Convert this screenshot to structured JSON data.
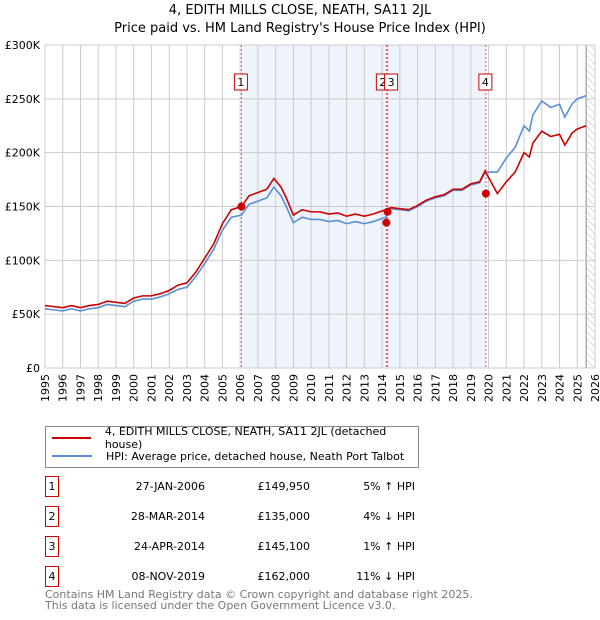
{
  "chart_data": {
    "type": "line",
    "title": "4, EDITH MILLS CLOSE, NEATH, SA11 2JL",
    "subtitle": "Price paid vs. HM Land Registry's House Price Index (HPI)",
    "xlim": [
      1995,
      2026
    ],
    "ylim": [
      0,
      300000
    ],
    "y_ticks": [
      {
        "v": 0,
        "label": "£0"
      },
      {
        "v": 50000,
        "label": "£50K"
      },
      {
        "v": 100000,
        "label": "£100K"
      },
      {
        "v": 150000,
        "label": "£150K"
      },
      {
        "v": 200000,
        "label": "£200K"
      },
      {
        "v": 250000,
        "label": "£250K"
      },
      {
        "v": 300000,
        "label": "£300K"
      }
    ],
    "x_ticks": [
      "1995",
      "1996",
      "1997",
      "1998",
      "1999",
      "2000",
      "2001",
      "2002",
      "2003",
      "2004",
      "2005",
      "2006",
      "2007",
      "2008",
      "2009",
      "2010",
      "2011",
      "2012",
      "2013",
      "2014",
      "2015",
      "2016",
      "2017",
      "2018",
      "2019",
      "2020",
      "2021",
      "2022",
      "2023",
      "2024",
      "2025",
      "2026"
    ],
    "grid": true,
    "x": [
      1995,
      1995.5,
      1996,
      1996.5,
      1997,
      1997.5,
      1998,
      1998.5,
      1999,
      1999.5,
      2000,
      2000.5,
      2001,
      2001.5,
      2002,
      2002.5,
      2003,
      2003.5,
      2004,
      2004.5,
      2005,
      2005.5,
      2006.07,
      2006.5,
      2007,
      2007.5,
      2007.9,
      2008.3,
      2008.6,
      2009,
      2009.5,
      2010,
      2010.5,
      2011,
      2011.5,
      2012,
      2012.5,
      2013,
      2013.5,
      2014.2,
      2014.5,
      2015,
      2015.5,
      2016,
      2016.5,
      2017,
      2017.5,
      2018,
      2018.5,
      2019,
      2019.5,
      2019.8,
      2020.5,
      2021,
      2021.5,
      2022,
      2022.3,
      2022.5,
      2023,
      2023.5,
      2024,
      2024.3,
      2024.7,
      2025,
      2025.5
    ],
    "series": [
      {
        "name": "4, EDITH MILLS CLOSE, NEATH, SA11 2JL (detached house)",
        "color": "#cc0000",
        "values": [
          58,
          57,
          56,
          58,
          56,
          58,
          59,
          62,
          61,
          60,
          65,
          67,
          67,
          69,
          72,
          77,
          79,
          89,
          102,
          115,
          134,
          147,
          149.95,
          160,
          163,
          166,
          176,
          168,
          158,
          142,
          147,
          145,
          145,
          143,
          144,
          141,
          143,
          141,
          143,
          147,
          149,
          148,
          147,
          151,
          156,
          159,
          161,
          166,
          166,
          171,
          173,
          183,
          162,
          173,
          182,
          200,
          196,
          209,
          220,
          215,
          217,
          207,
          218,
          222,
          225
        ]
      },
      {
        "name": "HPI: Average price, detached house, Neath Port Talbot",
        "color": "#5b8fd4",
        "values": [
          55,
          54,
          53,
          55,
          53,
          55,
          56,
          59,
          58,
          57,
          62,
          64,
          64,
          66,
          69,
          73,
          75,
          85,
          97,
          110,
          128,
          140,
          142,
          152,
          155,
          158,
          168,
          160,
          150,
          135,
          140,
          138,
          138,
          136,
          137,
          134,
          136,
          134,
          136,
          140,
          148,
          147,
          146,
          150,
          155,
          158,
          160,
          165,
          165,
          170,
          172,
          182,
          182,
          195,
          205,
          225,
          220,
          235,
          248,
          242,
          245,
          233,
          245,
          250,
          253
        ]
      }
    ],
    "value_unit": "thousand GBP",
    "sales": [
      {
        "id": "1",
        "x": 2006.07,
        "value": 149950
      },
      {
        "id": "2",
        "x": 2014.24,
        "value": 135000
      },
      {
        "id": "3",
        "x": 2014.31,
        "value": 145100
      },
      {
        "id": "4",
        "x": 2019.85,
        "value": 162000
      }
    ],
    "shaded_range": [
      2006.07,
      2019.85
    ],
    "forecast_hatch_from": 2025.5
  },
  "header": {
    "line1": "4, EDITH MILLS CLOSE, NEATH, SA11 2JL",
    "line2": "Price paid vs. HM Land Registry's House Price Index (HPI)"
  },
  "legend": {
    "red": "4, EDITH MILLS CLOSE, NEATH, SA11 2JL (detached house)",
    "blue": "HPI: Average price, detached house, Neath Port Talbot"
  },
  "table": [
    {
      "n": "1",
      "date": "27-JAN-2006",
      "price": "£149,950",
      "hpi": "5% ↑ HPI"
    },
    {
      "n": "2",
      "date": "28-MAR-2014",
      "price": "£135,000",
      "hpi": "4% ↓ HPI"
    },
    {
      "n": "3",
      "date": "24-APR-2014",
      "price": "£145,100",
      "hpi": "1% ↑ HPI"
    },
    {
      "n": "4",
      "date": "08-NOV-2019",
      "price": "£162,000",
      "hpi": "11% ↓ HPI"
    }
  ],
  "footer": {
    "line1": "Contains HM Land Registry data © Crown copyright and database right 2025.",
    "line2": "This data is licensed under the Open Government Licence v3.0."
  }
}
